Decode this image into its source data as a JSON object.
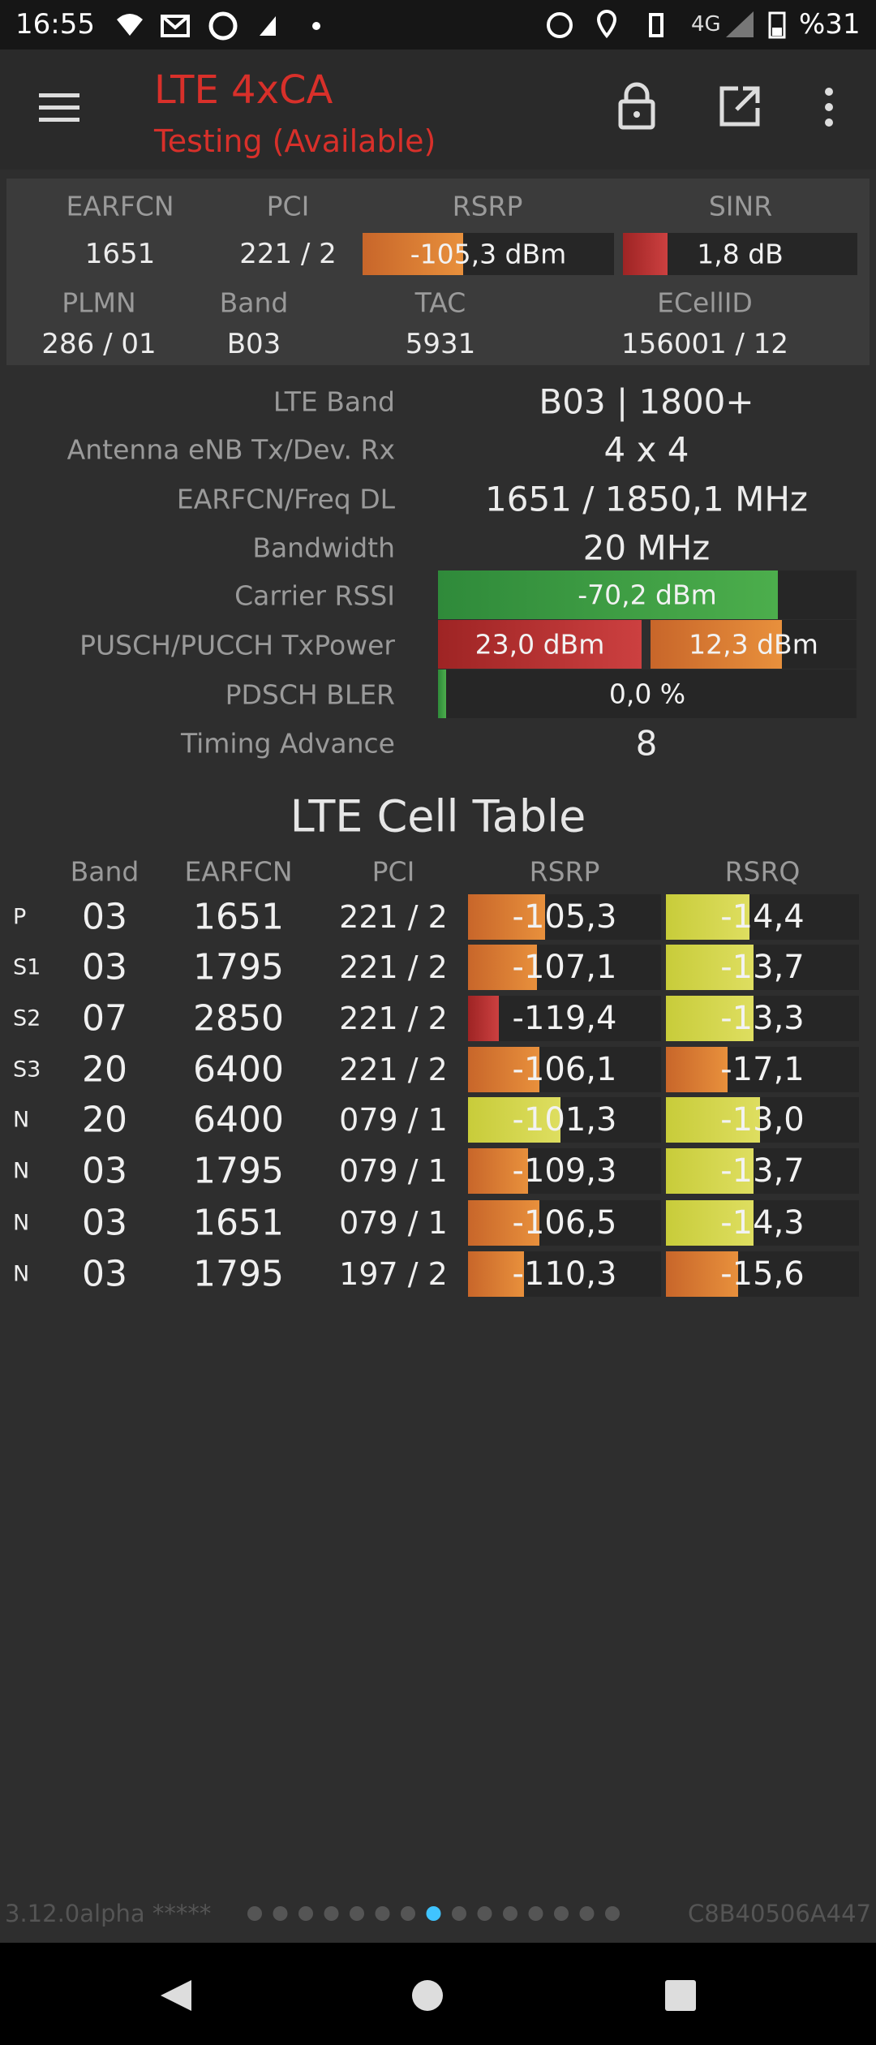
{
  "status_bar": {
    "time": "16:55",
    "network": "4G",
    "battery": "%31"
  },
  "toolbar": {
    "title": "LTE 4xCA",
    "subtitle": "Testing (Available)"
  },
  "summary": {
    "headers_1": [
      "EARFCN",
      "PCI",
      "RSRP",
      "SINR"
    ],
    "values_1": [
      "1651",
      "221 / 2",
      "-105,3 dBm",
      "1,8 dB"
    ],
    "headers_2": [
      "PLMN",
      "Band",
      "TAC",
      "ECellID"
    ],
    "values_2": [
      "286 / 01",
      "B03",
      "5931",
      "156001 / 12"
    ]
  },
  "details": [
    {
      "label": "LTE Band",
      "value": "B03 | 1800+"
    },
    {
      "label": "Antenna eNB Tx/Dev. Rx",
      "value": "4 x 4"
    },
    {
      "label": "EARFCN/Freq DL",
      "value": "1651 / 1850,1 MHz"
    },
    {
      "label": "Bandwidth",
      "value": "20 MHz"
    },
    {
      "label": "Carrier RSSI",
      "value": "-70,2 dBm"
    },
    {
      "label": "PUSCH/PUCCH TxPower",
      "value": "23,0 dBm",
      "value_2": "12,3 dBm"
    },
    {
      "label": "PDSCH BLER",
      "value": "0,0 %"
    },
    {
      "label": "Timing Advance",
      "value": "8"
    }
  ],
  "cell_table": {
    "title": "LTE Cell Table",
    "columns": [
      "Band",
      "EARFCN",
      "PCI",
      "RSRP",
      "RSRQ"
    ],
    "rows": [
      [
        "P",
        "03",
        "1651",
        "221 / 2",
        "-105,3",
        "-14,4"
      ],
      [
        "S1",
        "03",
        "1795",
        "221 / 2",
        "-107,1",
        "-13,7"
      ],
      [
        "S2",
        "07",
        "2850",
        "221 / 2",
        "-119,4",
        "-13,3"
      ],
      [
        "S3",
        "20",
        "6400",
        "221 / 2",
        "-106,1",
        "-17,1"
      ],
      [
        "N",
        "20",
        "6400",
        "079 / 1",
        "-101,3",
        "-13,0"
      ],
      [
        "N",
        "03",
        "1795",
        "079 / 1",
        "-109,3",
        "-13,7"
      ],
      [
        "N",
        "03",
        "1651",
        "079 / 1",
        "-106,5",
        "-14,3"
      ],
      [
        "N",
        "03",
        "1795",
        "197 / 2",
        "-110,3",
        "-15,6"
      ]
    ]
  },
  "footer": {
    "version": "3.12.0alpha *****",
    "device_id": "C8B40506A447"
  }
}
